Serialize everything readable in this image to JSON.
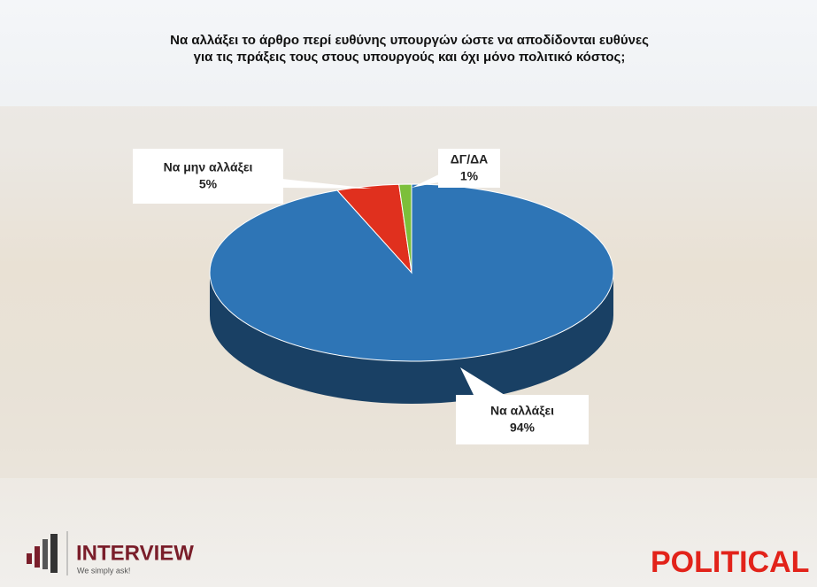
{
  "chart_data": {
    "type": "pie3d",
    "title": "Να αλλάξει το άρθρο περί ευθύνης υπουργών ώστε να αποδίδονται ευθύνες για τις πράξεις τους στους υπουργούς και όχι μόνο πολιτικό κόστος;",
    "categories": [
      "Να αλλάξει",
      "Να μην αλλάξει",
      "ΔΓ/ΔΑ"
    ],
    "values": [
      94,
      5,
      1
    ],
    "value_labels": [
      "94%",
      "5%",
      "1%"
    ],
    "colors": [
      "#2e75b6",
      "#e0301e",
      "#7cbf3a"
    ]
  },
  "footer": {
    "brand": "INTERVIEW",
    "tagline": "We simply ask!",
    "publisher": "POLITICAL"
  }
}
